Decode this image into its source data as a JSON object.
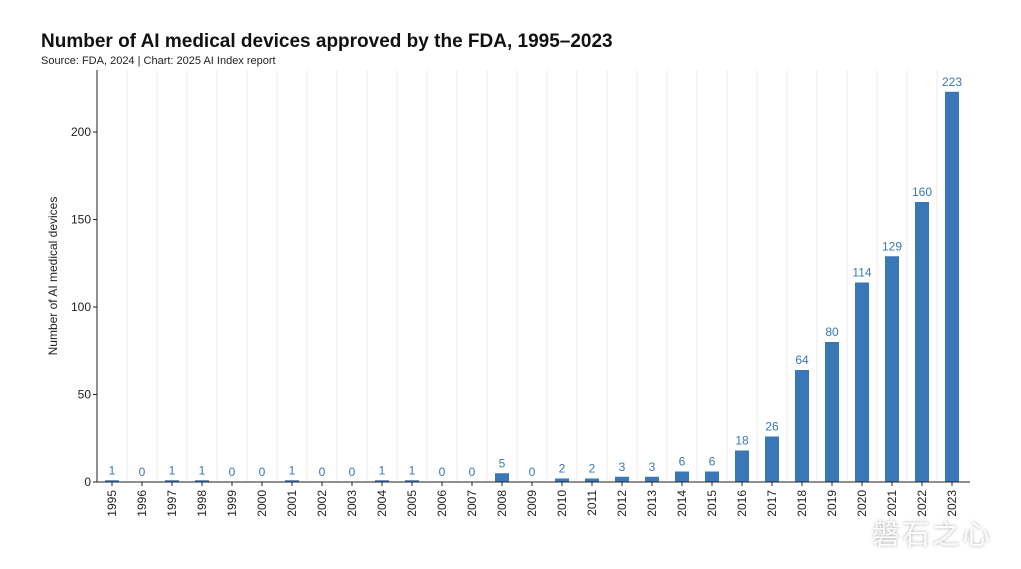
{
  "title": "Number of AI medical devices approved by the FDA, 1995–2023",
  "subtitle": "Source: FDA, 2024 | Chart: 2025 AI Index report",
  "watermark": "磐石之心",
  "colors": {
    "bar": "#3a77b6",
    "label": "#3a77b6",
    "axis": "#222222",
    "grid": "#ececec"
  },
  "chart_data": {
    "type": "bar",
    "title": "Number of AI medical devices approved by the FDA, 1995–2023",
    "xlabel": "",
    "ylabel": "Number of AI medical devices",
    "ylim": [
      0,
      235
    ],
    "yticks": [
      0,
      50,
      100,
      150,
      200
    ],
    "grid": true,
    "categories": [
      "1995",
      "1996",
      "1997",
      "1998",
      "1999",
      "2000",
      "2001",
      "2002",
      "2003",
      "2004",
      "2005",
      "2006",
      "2007",
      "2008",
      "2009",
      "2010",
      "2011",
      "2012",
      "2013",
      "2014",
      "2015",
      "2016",
      "2017",
      "2018",
      "2019",
      "2020",
      "2021",
      "2022",
      "2023"
    ],
    "values": [
      1,
      0,
      1,
      1,
      0,
      0,
      1,
      0,
      0,
      1,
      1,
      0,
      0,
      5,
      0,
      2,
      2,
      3,
      3,
      6,
      6,
      18,
      26,
      64,
      80,
      114,
      129,
      160,
      223
    ]
  }
}
